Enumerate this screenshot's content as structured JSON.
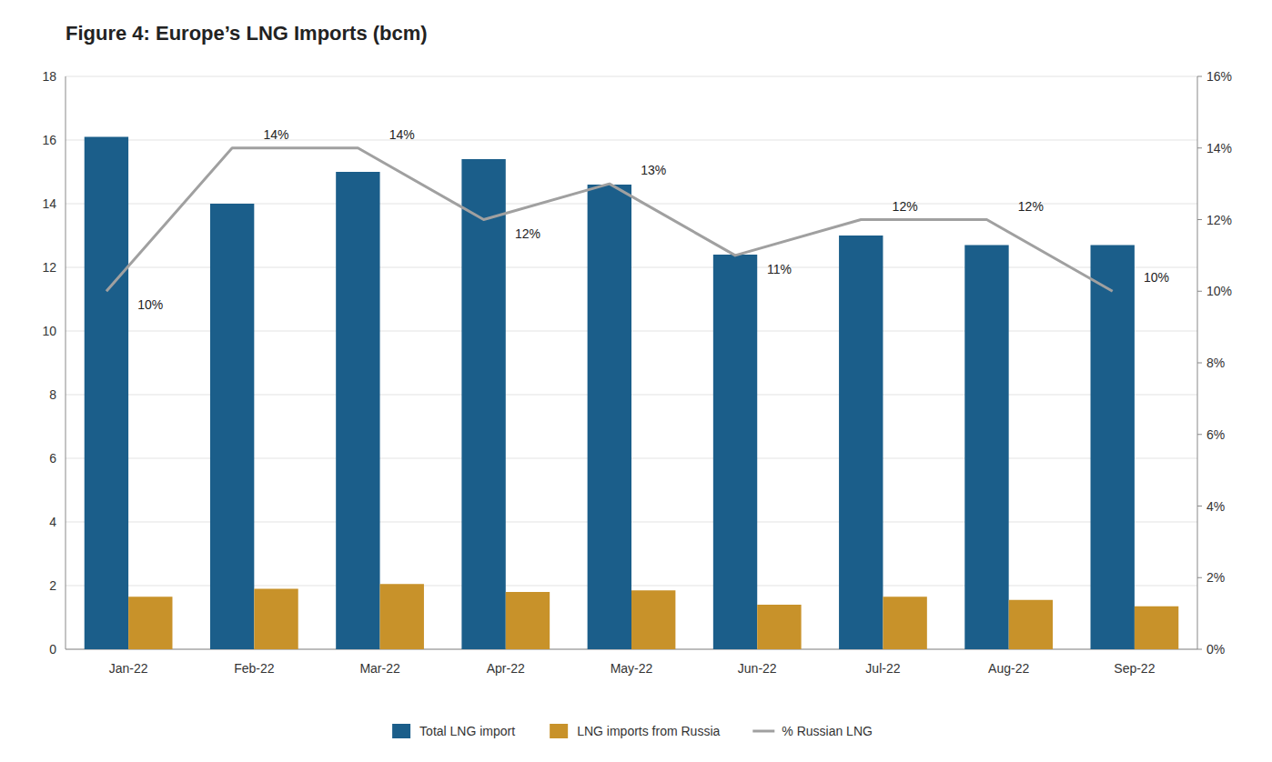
{
  "chart_data": {
    "type": "bar",
    "title": "Figure 4: Europe’s LNG Imports (bcm)",
    "categories": [
      "Jan-22",
      "Feb-22",
      "Mar-22",
      "Apr-22",
      "May-22",
      "Jun-22",
      "Jul-22",
      "Aug-22",
      "Sep-22"
    ],
    "series": [
      {
        "name": "Total LNG import",
        "color": "#1B5E8A",
        "values": [
          16.1,
          14.0,
          15.0,
          15.4,
          14.6,
          12.4,
          13.0,
          12.7,
          12.7
        ]
      },
      {
        "name": "LNG imports from Russia",
        "color": "#C8922A",
        "values": [
          1.65,
          1.9,
          2.05,
          1.8,
          1.85,
          1.4,
          1.65,
          1.55,
          1.35
        ]
      },
      {
        "name": "% Russian LNG",
        "type": "line",
        "axis": "y2",
        "color": "#A0A0A0",
        "data_labels": true,
        "values": [
          0.1,
          0.14,
          0.14,
          0.12,
          0.13,
          0.11,
          0.12,
          0.12,
          0.1
        ],
        "value_labels": [
          "10%",
          "14%",
          "14%",
          "12%",
          "13%",
          "11%",
          "12%",
          "12%",
          "10%"
        ]
      }
    ],
    "ylim": [
      0,
      18
    ],
    "yticks": [
      0,
      2,
      4,
      6,
      8,
      10,
      12,
      14,
      16,
      18
    ],
    "y2lim": [
      0,
      0.16
    ],
    "y2ticks": [
      {
        "value": 0.0,
        "label": "0%"
      },
      {
        "value": 0.02,
        "label": "2%"
      },
      {
        "value": 0.04,
        "label": "4%"
      },
      {
        "value": 0.06,
        "label": "6%"
      },
      {
        "value": 0.08,
        "label": "8%"
      },
      {
        "value": 0.1,
        "label": "10%"
      },
      {
        "value": 0.12,
        "label": "12%"
      },
      {
        "value": 0.14,
        "label": "14%"
      },
      {
        "value": 0.16,
        "label": "16%"
      }
    ],
    "grid": true,
    "legend": "bottom"
  }
}
